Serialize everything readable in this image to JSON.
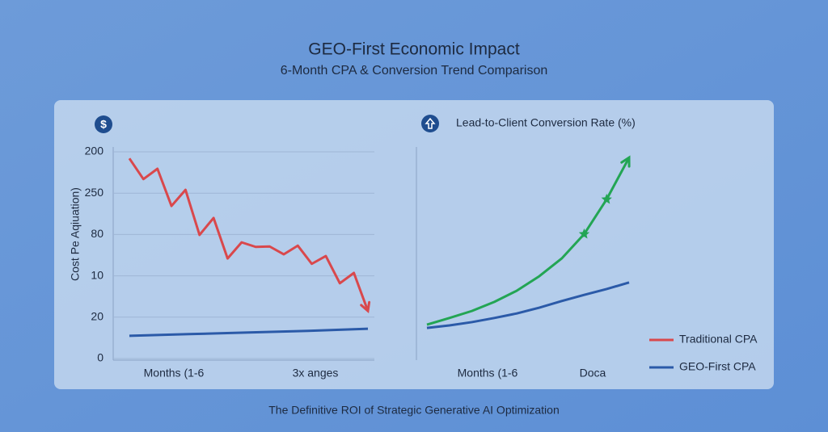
{
  "title": "GEO-First Economic Impact",
  "subtitle": "6-Month CPA & Conversion Trend Comparison",
  "footer": "The Definitive ROI of Strategic Generative AI Optimization",
  "chart_data": [
    {
      "type": "line",
      "icon": "$",
      "y_label": "Cost Pe Aqiuation)",
      "ylim": [
        0,
        5
      ],
      "yticks": [
        0,
        {
          "value": 1,
          "label": "20"
        },
        {
          "value": 2,
          "label": "10"
        },
        {
          "value": 3,
          "label": "80"
        },
        {
          "value": 4,
          "label": "250"
        },
        {
          "value": 5,
          "label": "200"
        }
      ],
      "grid": true,
      "xtick_labels": [
        "Months (1-6",
        "3x anges"
      ],
      "legend": "bottom-right",
      "series": [
        {
          "name": "Traditional CPA",
          "color": "#d9484c",
          "values": [
            4.84,
            4.34,
            4.59,
            3.69,
            4.08,
            2.99,
            3.4,
            2.42,
            2.81,
            2.7,
            2.71,
            2.52,
            2.73,
            2.29,
            2.48,
            1.82,
            2.07,
            1.15
          ]
        },
        {
          "name": "GEO-First CPA",
          "color": "#2b5aa8",
          "values": [
            0.55,
            0.59,
            0.63,
            0.67,
            0.72
          ]
        }
      ]
    },
    {
      "type": "line",
      "title": "Lead-to-Client Conversion Rate (%)",
      "ylim": [
        0,
        5
      ],
      "xtick_labels": [
        "Months (1-6",
        "Doca"
      ],
      "series": [
        {
          "color": "#23a554",
          "values": [
            0.82,
            0.98,
            1.15,
            1.37,
            1.64,
            1.99,
            2.42,
            3.01,
            3.85,
            4.86
          ]
        },
        {
          "color": "#2b5aa8",
          "values": [
            0.74,
            0.8,
            0.88,
            0.98,
            1.09,
            1.23,
            1.39,
            1.54,
            1.68,
            1.84
          ]
        }
      ]
    }
  ]
}
